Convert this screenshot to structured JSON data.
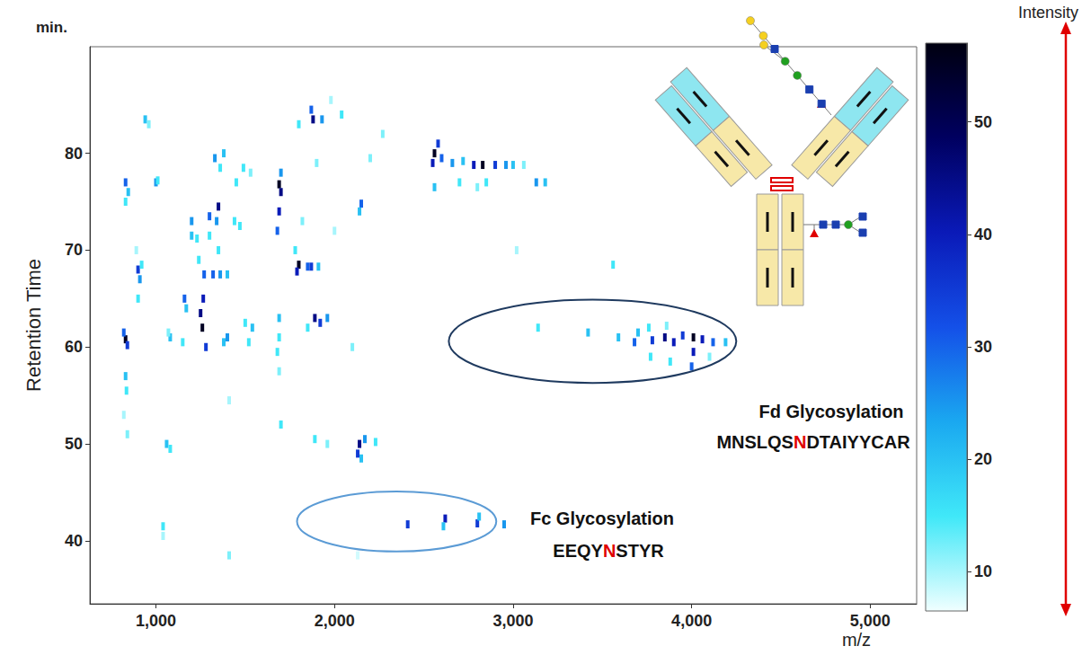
{
  "chart_data": {
    "type": "scatter",
    "y_unit": "min.",
    "y_label": "Retention Time",
    "x_label": "m/z",
    "xlim": [
      630,
      5260
    ],
    "xticks": [
      1000,
      2000,
      3000,
      4000,
      5000
    ],
    "ylim": [
      33.5,
      91
    ],
    "yticks": [
      40,
      50,
      60,
      70,
      80
    ],
    "grid": false,
    "colorbar": {
      "title": "Intensity",
      "range": [
        6.5,
        57
      ],
      "ticks": [
        10,
        20,
        30,
        40,
        50
      ]
    },
    "point_fields": [
      "m/z",
      "retention time",
      "intensity"
    ],
    "points": [
      [
        830,
        60.8,
        55
      ],
      [
        820,
        61.5,
        30
      ],
      [
        840,
        60.2,
        35
      ],
      [
        830,
        57,
        20
      ],
      [
        835,
        55.5,
        15
      ],
      [
        820,
        53,
        10
      ],
      [
        840,
        51,
        12
      ],
      [
        830,
        77,
        30
      ],
      [
        845,
        76,
        20
      ],
      [
        830,
        75,
        15
      ],
      [
        900,
        68,
        35
      ],
      [
        910,
        67,
        25
      ],
      [
        920,
        68.5,
        15
      ],
      [
        900,
        65,
        15
      ],
      [
        890,
        70,
        10
      ],
      [
        940,
        83.5,
        20
      ],
      [
        960,
        83,
        12
      ],
      [
        1000,
        77,
        25
      ],
      [
        1010,
        77.2,
        15
      ],
      [
        1080,
        61,
        20
      ],
      [
        1070,
        61.5,
        12
      ],
      [
        1060,
        50,
        20
      ],
      [
        1080,
        49.5,
        15
      ],
      [
        1040,
        41.5,
        15
      ],
      [
        1040,
        40.5,
        10
      ],
      [
        1160,
        65,
        30
      ],
      [
        1170,
        64,
        20
      ],
      [
        1150,
        60.5,
        15
      ],
      [
        1200,
        73,
        25
      ],
      [
        1200,
        71.5,
        20
      ],
      [
        1230,
        71.2,
        15
      ],
      [
        1250,
        63.5,
        45
      ],
      [
        1260,
        62,
        55
      ],
      [
        1265,
        65,
        40
      ],
      [
        1280,
        60,
        35
      ],
      [
        1270,
        67.5,
        30
      ],
      [
        1240,
        69,
        15
      ],
      [
        1300,
        71.5,
        15
      ],
      [
        1300,
        73.5,
        30
      ],
      [
        1350,
        74.5,
        45
      ],
      [
        1340,
        73,
        25
      ],
      [
        1350,
        70,
        15
      ],
      [
        1330,
        79.5,
        25
      ],
      [
        1380,
        80,
        20
      ],
      [
        1360,
        78.5,
        15
      ],
      [
        1320,
        67.5,
        30
      ],
      [
        1360,
        67.5,
        25
      ],
      [
        1400,
        67.5,
        20
      ],
      [
        1400,
        61,
        25
      ],
      [
        1380,
        60.5,
        20
      ],
      [
        1440,
        73,
        15
      ],
      [
        1470,
        72.5,
        15
      ],
      [
        1450,
        77,
        15
      ],
      [
        1410,
        38.5,
        12
      ],
      [
        1410,
        54.5,
        10
      ],
      [
        1540,
        62,
        20
      ],
      [
        1500,
        62.5,
        15
      ],
      [
        1520,
        60.5,
        15
      ],
      [
        1490,
        78.5,
        15
      ],
      [
        1530,
        78,
        12
      ],
      [
        1690,
        76.8,
        55
      ],
      [
        1700,
        76,
        45
      ],
      [
        1690,
        74,
        40
      ],
      [
        1680,
        72,
        30
      ],
      [
        1700,
        78,
        25
      ],
      [
        1690,
        63,
        20
      ],
      [
        1690,
        61,
        15
      ],
      [
        1680,
        59.5,
        15
      ],
      [
        1690,
        57.5,
        12
      ],
      [
        1700,
        52,
        15
      ],
      [
        1800,
        68.5,
        55
      ],
      [
        1790,
        67.8,
        40
      ],
      [
        1850,
        68.3,
        30
      ],
      [
        1870,
        68.3,
        35
      ],
      [
        1910,
        68.3,
        20
      ],
      [
        1780,
        70,
        15
      ],
      [
        1890,
        63,
        45
      ],
      [
        1920,
        62.5,
        35
      ],
      [
        1960,
        63,
        25
      ],
      [
        1850,
        62,
        15
      ],
      [
        1880,
        83.5,
        45
      ],
      [
        1870,
        84.5,
        30
      ],
      [
        1930,
        83.5,
        25
      ],
      [
        1800,
        83,
        15
      ],
      [
        2040,
        84,
        15
      ],
      [
        1980,
        85.5,
        10
      ],
      [
        1820,
        73,
        12
      ],
      [
        1900,
        79,
        12
      ],
      [
        1890,
        50.5,
        15
      ],
      [
        1960,
        50,
        12
      ],
      [
        2140,
        50,
        45
      ],
      [
        2130,
        49,
        35
      ],
      [
        2170,
        50.5,
        25
      ],
      [
        2230,
        50.2,
        15
      ],
      [
        2150,
        48.5,
        20
      ],
      [
        2150,
        74.8,
        30
      ],
      [
        2140,
        74,
        20
      ],
      [
        2200,
        79.5,
        12
      ],
      [
        2270,
        82,
        12
      ],
      [
        2000,
        72,
        10
      ],
      [
        2100,
        60,
        12
      ],
      [
        2560,
        80,
        55
      ],
      [
        2550,
        79,
        40
      ],
      [
        2580,
        81,
        35
      ],
      [
        2600,
        79.5,
        30
      ],
      [
        2660,
        79,
        25
      ],
      [
        2720,
        79.2,
        20
      ],
      [
        2560,
        76.5,
        20
      ],
      [
        2700,
        77,
        15
      ],
      [
        2830,
        78.8,
        55
      ],
      [
        2780,
        78.8,
        40
      ],
      [
        2900,
        78.8,
        35
      ],
      [
        2960,
        78.8,
        25
      ],
      [
        3000,
        78.8,
        20
      ],
      [
        2850,
        77,
        15
      ],
      [
        2800,
        76.5,
        12
      ],
      [
        3130,
        77,
        25
      ],
      [
        3180,
        77,
        20
      ],
      [
        3060,
        78.8,
        12
      ],
      [
        3020,
        70,
        10
      ],
      [
        3560,
        68.5,
        15
      ],
      [
        2410,
        41.7,
        35
      ],
      [
        2620,
        42.3,
        40
      ],
      [
        2610,
        41.5,
        20
      ],
      [
        2800,
        41.8,
        35
      ],
      [
        2810,
        42.5,
        20
      ],
      [
        2950,
        41.7,
        25
      ],
      [
        2130,
        38.5,
        8
      ],
      [
        3140,
        62,
        15
      ],
      [
        3420,
        61.5,
        20
      ],
      [
        3590,
        61,
        20
      ],
      [
        3680,
        60.5,
        30
      ],
      [
        3700,
        61.5,
        20
      ],
      [
        3780,
        60.7,
        35
      ],
      [
        3850,
        61,
        45
      ],
      [
        3900,
        60.5,
        40
      ],
      [
        3950,
        61.2,
        35
      ],
      [
        4010,
        61,
        55
      ],
      [
        4010,
        59.5,
        40
      ],
      [
        4000,
        58,
        30
      ],
      [
        4060,
        60.8,
        40
      ],
      [
        4120,
        60.5,
        30
      ],
      [
        4190,
        60.5,
        20
      ],
      [
        3770,
        59,
        15
      ],
      [
        3880,
        58.5,
        15
      ],
      [
        3760,
        62,
        15
      ],
      [
        3860,
        62.2,
        12
      ],
      [
        4100,
        59,
        12
      ]
    ],
    "annotations": [
      {
        "label": "Fd Glycosylation",
        "sequence": "MNSLQSNDTAIYYCAR",
        "site": 7,
        "xlim": [
          2640,
          4250
        ],
        "ylim": [
          56.3,
          64.9
        ]
      },
      {
        "label": "Fc Glycosylation",
        "sequence": "EEQYNSTYR",
        "site": 5,
        "xlim": [
          1790,
          2906
        ],
        "ylim": [
          38.9,
          45.1
        ]
      }
    ]
  }
}
